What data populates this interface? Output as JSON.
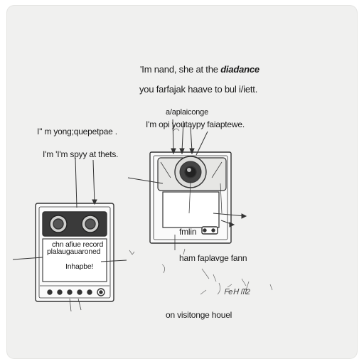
{
  "title": {
    "line1_prefix": "'Im nand, she at the ",
    "line1_emph": "diadance",
    "line2": "you farfajak haave to bul i/iett."
  },
  "top_device_labels": {
    "line1": "a/aplaiconge",
    "line2": "I'm opi youtaypy faiaptewe."
  },
  "left_labels": {
    "line1": "I'' m yong;quepetpae .",
    "line2": "I'm 'I'm spyy at thets."
  },
  "left_device": {
    "screen_line1": "chn afiue record",
    "screen_line2": "plalaugauaroned",
    "screen_line3": "Inhapbe!"
  },
  "right_device": {
    "screen_text": "fmlin",
    "caption": "ham faplavge fann"
  },
  "annotation": {
    "scribble": "ᖴeᕼ  ᗰ2"
  },
  "footer": {
    "caption": "on visitonge houel"
  }
}
